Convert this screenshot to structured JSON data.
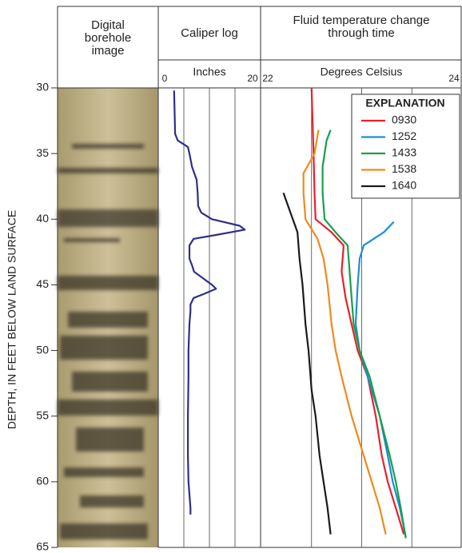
{
  "chart_data": [
    {
      "type": "image",
      "title": "Digital borehole image",
      "ylabel": "DEPTH, IN FEET BELOW LAND SURFACE",
      "ylim": [
        30,
        65
      ],
      "yticks": [
        30,
        35,
        40,
        45,
        50,
        55,
        60,
        65
      ]
    },
    {
      "type": "line",
      "title": "Caliper log",
      "xlabel": "Inches",
      "xlim": [
        0,
        20
      ],
      "xticks": [
        0,
        20
      ],
      "minor_xticks": [
        5,
        10,
        15
      ],
      "series": [
        {
          "color": "#2e2e8c",
          "depth": [
            30.2,
            33.5,
            34,
            34.5,
            35,
            36,
            37,
            38,
            39,
            39.5,
            40,
            40.5,
            40.8,
            41.2,
            41.5,
            42,
            43,
            43.5,
            44,
            45,
            45.3,
            45.7,
            46,
            46.5,
            47,
            48,
            50,
            52,
            55,
            58,
            60,
            62,
            62.5
          ],
          "values": [
            3.1,
            3.3,
            3.8,
            5.8,
            6.1,
            6.6,
            7.5,
            7.7,
            7.8,
            8.4,
            10.5,
            15.9,
            16.9,
            11.3,
            6.9,
            6.1,
            6.1,
            6.6,
            7.0,
            10.5,
            11.3,
            8.9,
            6.9,
            6.3,
            6.3,
            6.1,
            5.9,
            5.9,
            5.8,
            5.8,
            5.9,
            6.3,
            6.3
          ]
        }
      ]
    },
    {
      "type": "line",
      "title": "Fluid temperature change through time",
      "xlabel": "Degrees Celsius",
      "xlim": [
        22,
        24
      ],
      "xticks": [
        22,
        24
      ],
      "minor_xticks": [
        22.5,
        23,
        23.5
      ],
      "legend_title": "EXPLANATION",
      "legend": "upper right",
      "series": [
        {
          "name": "0930",
          "color": "#e8202a",
          "depth": [
            30,
            35,
            38,
            40,
            41,
            42,
            44,
            46,
            48,
            50,
            52,
            55,
            58,
            60,
            62,
            64
          ],
          "values": [
            22.5,
            22.52,
            22.53,
            22.54,
            22.7,
            22.82,
            22.8,
            22.84,
            22.9,
            22.96,
            23.06,
            23.14,
            23.2,
            23.26,
            23.34,
            23.42
          ]
        },
        {
          "name": "1252",
          "color": "#1b8fd2",
          "depth": [
            40.2,
            41,
            42,
            43,
            45,
            48,
            50,
            52,
            55,
            58,
            60,
            62,
            64.2
          ],
          "values": [
            23.32,
            23.22,
            23.02,
            22.98,
            22.96,
            22.94,
            22.98,
            23.06,
            23.18,
            23.26,
            23.31,
            23.38,
            23.44
          ]
        },
        {
          "name": "1433",
          "color": "#1a9e4a",
          "depth": [
            33.2,
            34,
            36,
            38,
            40,
            41,
            42,
            44,
            46,
            48,
            50,
            52,
            55,
            58,
            60,
            62,
            64.3
          ],
          "values": [
            22.69,
            22.65,
            22.61,
            22.61,
            22.63,
            22.74,
            22.86,
            22.88,
            22.9,
            22.92,
            22.98,
            23.08,
            23.18,
            23.28,
            23.34,
            23.39,
            23.44
          ]
        },
        {
          "name": "1538",
          "color": "#f08a1c",
          "depth": [
            33.2,
            35,
            36.5,
            38,
            40,
            41.5,
            43,
            45,
            48,
            50,
            52,
            55,
            58,
            60,
            62,
            64
          ],
          "values": [
            22.57,
            22.53,
            22.42,
            22.42,
            22.44,
            22.56,
            22.62,
            22.66,
            22.7,
            22.74,
            22.8,
            22.9,
            23.02,
            23.1,
            23.18,
            23.24
          ]
        },
        {
          "name": "1640",
          "color": "#1a1a1a",
          "depth": [
            38,
            39.5,
            41,
            43,
            45,
            48,
            50,
            53,
            55,
            58,
            60,
            62,
            64
          ],
          "values": [
            22.22,
            22.29,
            22.36,
            22.38,
            22.41,
            22.44,
            22.47,
            22.5,
            22.54,
            22.58,
            22.62,
            22.66,
            22.69
          ]
        }
      ]
    }
  ]
}
